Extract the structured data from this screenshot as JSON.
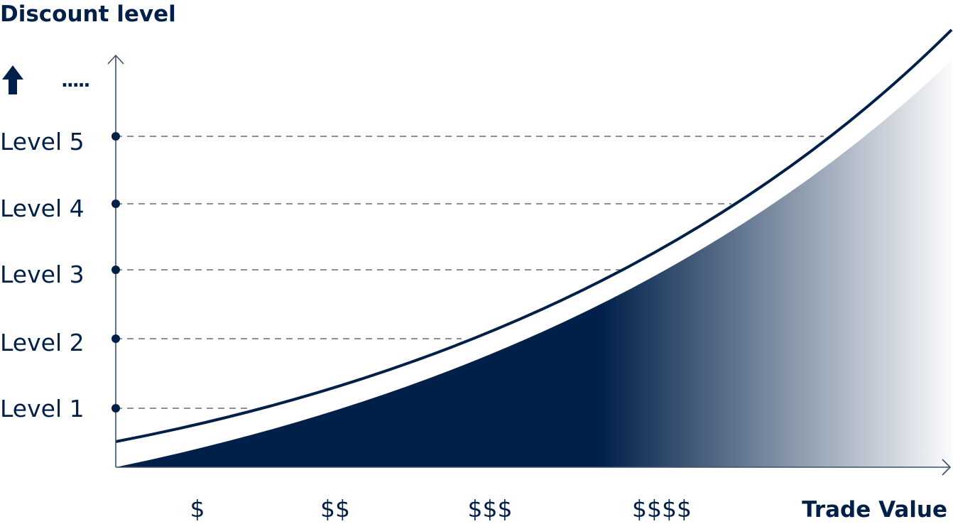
{
  "title": "Discount level",
  "x_axis_label": "Trade Value",
  "y_more_indicator": ".....",
  "y_arrow_icon": "arrow-up-icon",
  "levels": [
    "Level 1",
    "Level 2",
    "Level 3",
    "Level 4",
    "Level 5"
  ],
  "x_ticks": [
    "$",
    "$$",
    "$$$",
    "$$$$"
  ],
  "colors": {
    "primary": "#00204a",
    "axis": "#3b4f6e"
  }
}
